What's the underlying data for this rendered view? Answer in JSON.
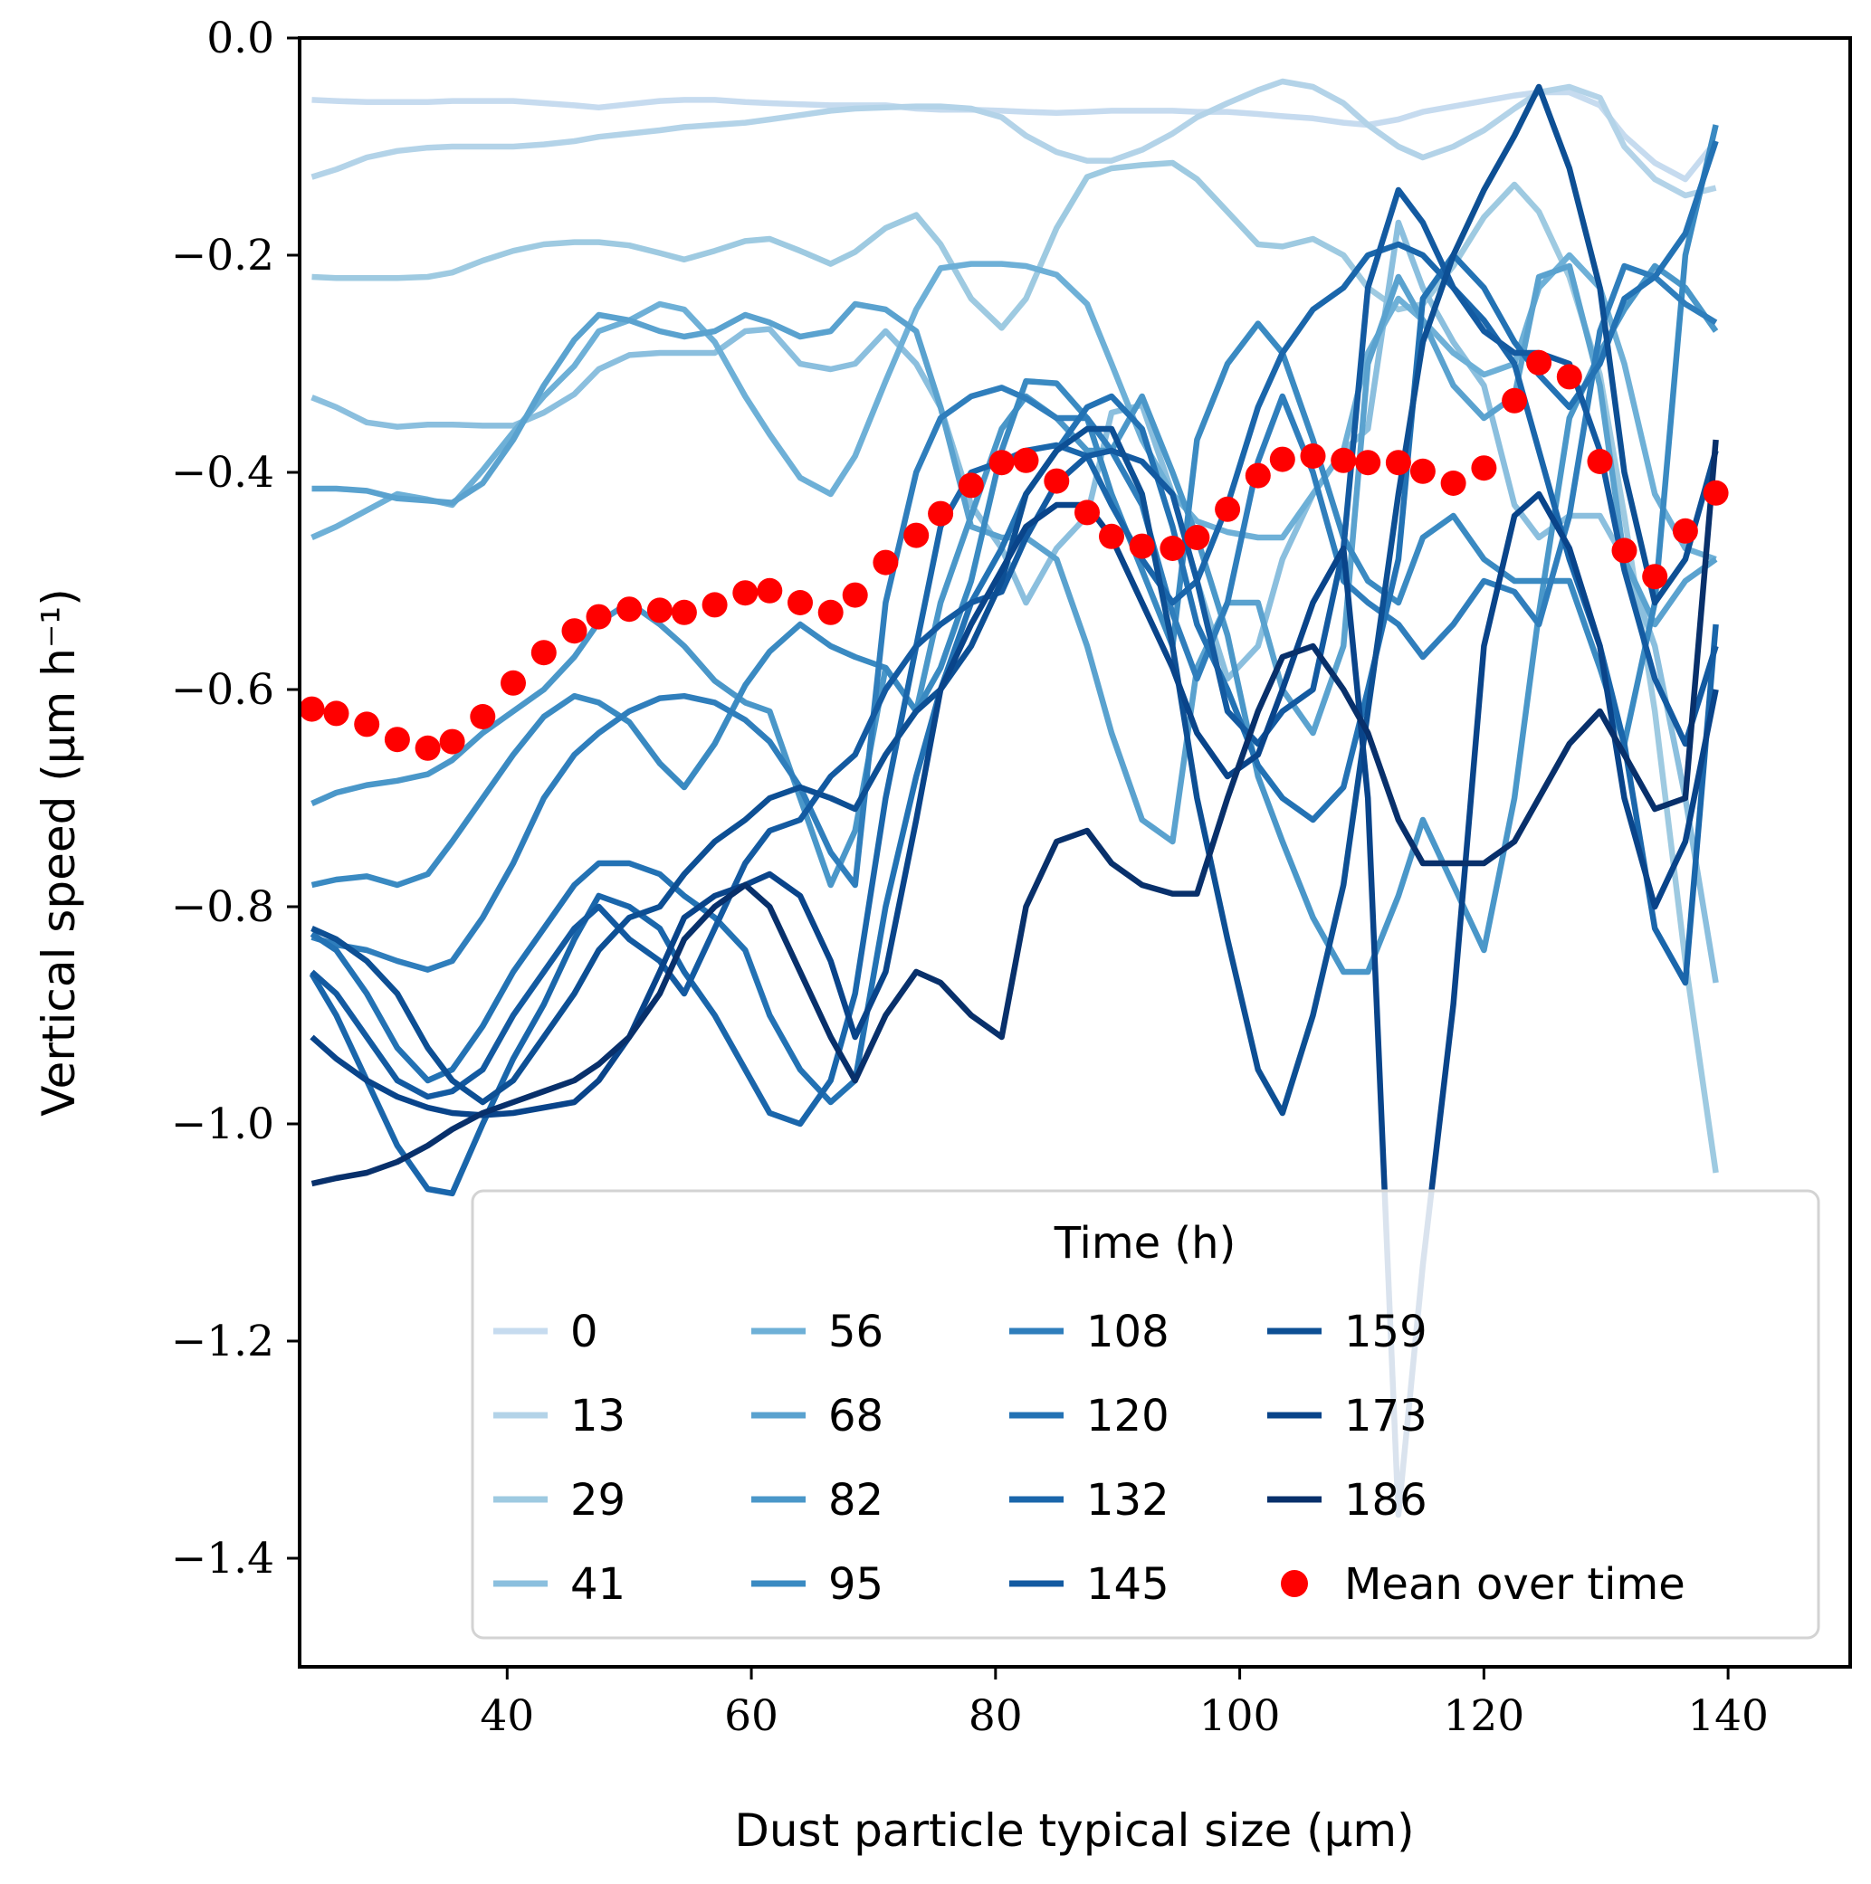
{
  "chart_data": {
    "type": "line",
    "xlabel": "Dust particle typical size (μm)",
    "ylabel": "Vertical speed (μm h⁻¹)",
    "xlim": [
      23,
      150
    ],
    "ylim": [
      -1.5,
      0.0
    ],
    "xticks": [
      40,
      60,
      80,
      100,
      120,
      140
    ],
    "xtick_labels": [
      "40",
      "60",
      "80",
      "100",
      "120",
      "140"
    ],
    "yticks": [
      0.0,
      -0.2,
      -0.4,
      -0.6,
      -0.8,
      -1.0,
      -1.2,
      -1.4
    ],
    "ytick_labels": [
      "0.0",
      "−0.2",
      "−0.4",
      "−0.6",
      "−0.8",
      "−1.0",
      "−1.2",
      "−1.4"
    ],
    "grid": false,
    "legend": {
      "title": "Time (h)",
      "placement": "lower-right",
      "columns": 4
    },
    "x": [
      24,
      26,
      28.5,
      31,
      33.5,
      35.5,
      38,
      40.5,
      43,
      45.5,
      47.5,
      50,
      52.5,
      54.5,
      57,
      59.5,
      61.5,
      64,
      66.5,
      68.5,
      71,
      73.5,
      75.5,
      78,
      80.5,
      82.5,
      85,
      87.5,
      89.5,
      92,
      94.5,
      96.5,
      99,
      101.5,
      103.5,
      106,
      108.5,
      110.5,
      113,
      115,
      117.5,
      120,
      122.5,
      124.5,
      127,
      129.5,
      131.5,
      134,
      136.5,
      139
    ],
    "series": [
      {
        "name": "0",
        "color": "#c6dbef",
        "values": [
          -0.057,
          -0.058,
          -0.059,
          -0.059,
          -0.059,
          -0.058,
          -0.058,
          -0.058,
          -0.06,
          -0.062,
          -0.064,
          -0.061,
          -0.058,
          -0.057,
          -0.057,
          -0.059,
          -0.06,
          -0.061,
          -0.062,
          -0.062,
          -0.062,
          -0.065,
          -0.066,
          -0.066,
          -0.067,
          -0.068,
          -0.069,
          -0.068,
          -0.067,
          -0.067,
          -0.067,
          -0.068,
          -0.068,
          -0.07,
          -0.072,
          -0.074,
          -0.078,
          -0.08,
          -0.075,
          -0.068,
          -0.063,
          -0.058,
          -0.053,
          -0.05,
          -0.05,
          -0.062,
          -0.09,
          -0.115,
          -0.13,
          -0.095
        ]
      },
      {
        "name": "13",
        "color": "#b3d3e8",
        "values": [
          -0.128,
          -0.121,
          -0.11,
          -0.104,
          -0.101,
          -0.1,
          -0.1,
          -0.1,
          -0.098,
          -0.095,
          -0.091,
          -0.088,
          -0.085,
          -0.082,
          -0.08,
          -0.078,
          -0.075,
          -0.071,
          -0.067,
          -0.065,
          -0.064,
          -0.063,
          -0.063,
          -0.065,
          -0.073,
          -0.09,
          -0.105,
          -0.113,
          -0.113,
          -0.103,
          -0.088,
          -0.073,
          -0.06,
          -0.048,
          -0.04,
          -0.045,
          -0.06,
          -0.08,
          -0.1,
          -0.11,
          -0.1,
          -0.085,
          -0.065,
          -0.05,
          -0.045,
          -0.055,
          -0.1,
          -0.13,
          -0.145,
          -0.138
        ]
      },
      {
        "name": "29",
        "color": "#9ecae1",
        "values": [
          -0.22,
          -0.221,
          -0.221,
          -0.221,
          -0.22,
          -0.216,
          -0.205,
          -0.196,
          -0.19,
          -0.188,
          -0.188,
          -0.191,
          -0.198,
          -0.204,
          -0.196,
          -0.187,
          -0.185,
          -0.196,
          -0.208,
          -0.197,
          -0.175,
          -0.163,
          -0.19,
          -0.24,
          -0.267,
          -0.24,
          -0.175,
          -0.128,
          -0.12,
          -0.117,
          -0.115,
          -0.13,
          -0.16,
          -0.19,
          -0.192,
          -0.185,
          -0.2,
          -0.23,
          -0.25,
          -0.245,
          -0.21,
          -0.165,
          -0.135,
          -0.16,
          -0.22,
          -0.31,
          -0.44,
          -0.62,
          -0.85,
          -1.045
        ]
      },
      {
        "name": "41",
        "color": "#8bbfde",
        "values": [
          -0.331,
          -0.34,
          -0.354,
          -0.358,
          -0.356,
          -0.356,
          -0.357,
          -0.357,
          -0.345,
          -0.328,
          -0.305,
          -0.292,
          -0.29,
          -0.29,
          -0.29,
          -0.27,
          -0.268,
          -0.3,
          -0.305,
          -0.3,
          -0.27,
          -0.3,
          -0.34,
          -0.43,
          -0.47,
          -0.52,
          -0.47,
          -0.44,
          -0.345,
          -0.338,
          -0.42,
          -0.5,
          -0.59,
          -0.56,
          -0.48,
          -0.42,
          -0.38,
          -0.36,
          -0.17,
          -0.23,
          -0.28,
          -0.32,
          -0.43,
          -0.46,
          -0.44,
          -0.44,
          -0.48,
          -0.56,
          -0.7,
          -0.87
        ]
      },
      {
        "name": "56",
        "color": "#6eb0d7",
        "values": [
          -0.46,
          -0.45,
          -0.435,
          -0.42,
          -0.425,
          -0.43,
          -0.398,
          -0.363,
          -0.33,
          -0.302,
          -0.27,
          -0.26,
          -0.245,
          -0.25,
          -0.28,
          -0.33,
          -0.365,
          -0.405,
          -0.42,
          -0.385,
          -0.316,
          -0.25,
          -0.212,
          -0.208,
          -0.208,
          -0.21,
          -0.218,
          -0.245,
          -0.3,
          -0.37,
          -0.42,
          -0.445,
          -0.455,
          -0.46,
          -0.46,
          -0.42,
          -0.38,
          -0.29,
          -0.24,
          -0.26,
          -0.29,
          -0.31,
          -0.3,
          -0.23,
          -0.2,
          -0.23,
          -0.3,
          -0.42,
          -0.47,
          -0.48
        ]
      },
      {
        "name": "68",
        "color": "#5aa2cf",
        "values": [
          -0.415,
          -0.415,
          -0.417,
          -0.424,
          -0.426,
          -0.428,
          -0.41,
          -0.37,
          -0.32,
          -0.278,
          -0.255,
          -0.26,
          -0.27,
          -0.275,
          -0.27,
          -0.255,
          -0.262,
          -0.275,
          -0.27,
          -0.245,
          -0.25,
          -0.27,
          -0.34,
          -0.45,
          -0.46,
          -0.46,
          -0.48,
          -0.56,
          -0.64,
          -0.72,
          -0.74,
          -0.58,
          -0.52,
          -0.52,
          -0.6,
          -0.64,
          -0.56,
          -0.3,
          -0.22,
          -0.26,
          -0.32,
          -0.35,
          -0.33,
          -0.22,
          -0.21,
          -0.32,
          -0.48,
          -0.54,
          -0.5,
          -0.48
        ]
      },
      {
        "name": "82",
        "color": "#4a97c9",
        "values": [
          -0.705,
          -0.695,
          -0.688,
          -0.684,
          -0.678,
          -0.665,
          -0.64,
          -0.62,
          -0.6,
          -0.57,
          -0.538,
          -0.52,
          -0.54,
          -0.56,
          -0.592,
          -0.612,
          -0.62,
          -0.7,
          -0.78,
          -0.73,
          -0.58,
          -0.62,
          -0.52,
          -0.44,
          -0.36,
          -0.33,
          -0.35,
          -0.38,
          -0.38,
          -0.33,
          -0.4,
          -0.46,
          -0.55,
          -0.68,
          -0.74,
          -0.81,
          -0.86,
          -0.86,
          -0.79,
          -0.72,
          -0.78,
          -0.84,
          -0.7,
          -0.53,
          -0.35,
          -0.29,
          -0.25,
          -0.21,
          -0.23,
          -0.27
        ]
      },
      {
        "name": "95",
        "color": "#3a8ac2",
        "values": [
          -0.78,
          -0.775,
          -0.772,
          -0.78,
          -0.77,
          -0.74,
          -0.7,
          -0.66,
          -0.625,
          -0.606,
          -0.612,
          -0.63,
          -0.668,
          -0.69,
          -0.65,
          -0.596,
          -0.565,
          -0.54,
          -0.56,
          -0.57,
          -0.58,
          -0.62,
          -0.58,
          -0.5,
          -0.38,
          -0.316,
          -0.318,
          -0.35,
          -0.42,
          -0.49,
          -0.56,
          -0.37,
          -0.3,
          -0.263,
          -0.29,
          -0.37,
          -0.46,
          -0.5,
          -0.52,
          -0.46,
          -0.44,
          -0.48,
          -0.5,
          -0.5,
          -0.5,
          -0.58,
          -0.65,
          -0.52,
          -0.2,
          -0.08
        ]
      },
      {
        "name": "108",
        "color": "#2f7ebc",
        "values": [
          -0.828,
          -0.835,
          -0.84,
          -0.85,
          -0.858,
          -0.85,
          -0.81,
          -0.76,
          -0.7,
          -0.66,
          -0.64,
          -0.62,
          -0.608,
          -0.606,
          -0.612,
          -0.628,
          -0.648,
          -0.69,
          -0.75,
          -0.78,
          -0.52,
          -0.4,
          -0.35,
          -0.33,
          -0.322,
          -0.332,
          -0.35,
          -0.35,
          -0.38,
          -0.43,
          -0.53,
          -0.59,
          -0.52,
          -0.39,
          -0.33,
          -0.4,
          -0.5,
          -0.52,
          -0.54,
          -0.57,
          -0.54,
          -0.5,
          -0.51,
          -0.54,
          -0.44,
          -0.27,
          -0.21,
          -0.22,
          -0.245,
          -0.262
        ]
      },
      {
        "name": "120",
        "color": "#2372b4",
        "values": [
          -0.825,
          -0.84,
          -0.88,
          -0.93,
          -0.96,
          -0.95,
          -0.91,
          -0.86,
          -0.82,
          -0.78,
          -0.76,
          -0.76,
          -0.77,
          -0.79,
          -0.81,
          -0.84,
          -0.9,
          -0.95,
          -0.98,
          -0.96,
          -0.8,
          -0.68,
          -0.6,
          -0.52,
          -0.47,
          -0.42,
          -0.38,
          -0.34,
          -0.33,
          -0.36,
          -0.45,
          -0.54,
          -0.6,
          -0.67,
          -0.7,
          -0.72,
          -0.69,
          -0.6,
          -0.48,
          -0.24,
          -0.2,
          -0.23,
          -0.28,
          -0.31,
          -0.34,
          -0.3,
          -0.24,
          -0.22,
          -0.18,
          -0.095
        ]
      },
      {
        "name": "132",
        "color": "#1a66ab",
        "values": [
          -0.862,
          -0.9,
          -0.96,
          -1.02,
          -1.06,
          -1.064,
          -1.0,
          -0.94,
          -0.89,
          -0.83,
          -0.79,
          -0.8,
          -0.82,
          -0.86,
          -0.9,
          -0.95,
          -0.99,
          -1.0,
          -0.96,
          -0.88,
          -0.7,
          -0.56,
          -0.45,
          -0.4,
          -0.39,
          -0.38,
          -0.375,
          -0.385,
          -0.43,
          -0.48,
          -0.52,
          -0.5,
          -0.43,
          -0.34,
          -0.29,
          -0.25,
          -0.23,
          -0.2,
          -0.19,
          -0.2,
          -0.23,
          -0.26,
          -0.3,
          -0.38,
          -0.48,
          -0.56,
          -0.65,
          -0.82,
          -0.87,
          -0.54
        ]
      },
      {
        "name": "145",
        "color": "#135aa1",
        "values": [
          -0.86,
          -0.88,
          -0.92,
          -0.96,
          -0.975,
          -0.97,
          -0.95,
          -0.9,
          -0.86,
          -0.82,
          -0.8,
          -0.83,
          -0.85,
          -0.88,
          -0.82,
          -0.76,
          -0.73,
          -0.72,
          -0.68,
          -0.66,
          -0.6,
          -0.56,
          -0.54,
          -0.52,
          -0.51,
          -0.46,
          -0.41,
          -0.385,
          -0.38,
          -0.39,
          -0.42,
          -0.5,
          -0.62,
          -0.65,
          -0.62,
          -0.6,
          -0.47,
          -0.23,
          -0.14,
          -0.17,
          -0.23,
          -0.27,
          -0.29,
          -0.29,
          -0.3,
          -0.38,
          -0.49,
          -0.59,
          -0.65,
          -0.56
        ]
      },
      {
        "name": "159",
        "color": "#0d4f94",
        "values": [
          -0.82,
          -0.83,
          -0.85,
          -0.88,
          -0.93,
          -0.96,
          -0.98,
          -0.96,
          -0.92,
          -0.88,
          -0.84,
          -0.81,
          -0.8,
          -0.77,
          -0.74,
          -0.72,
          -0.7,
          -0.69,
          -0.7,
          -0.71,
          -0.66,
          -0.62,
          -0.6,
          -0.56,
          -0.5,
          -0.42,
          -0.38,
          -0.36,
          -0.36,
          -0.42,
          -0.56,
          -0.7,
          -0.83,
          -0.95,
          -0.99,
          -0.9,
          -0.78,
          -0.62,
          -0.42,
          -0.28,
          -0.2,
          -0.14,
          -0.09,
          -0.045,
          -0.12,
          -0.23,
          -0.4,
          -0.52,
          -0.48,
          -0.38
        ]
      },
      {
        "name": "173",
        "color": "#09448a",
        "values": [
          -0.92,
          -0.94,
          -0.96,
          -0.975,
          -0.985,
          -0.99,
          -0.992,
          -0.99,
          -0.985,
          -0.98,
          -0.96,
          -0.92,
          -0.86,
          -0.81,
          -0.79,
          -0.78,
          -0.77,
          -0.79,
          -0.85,
          -0.92,
          -0.86,
          -0.72,
          -0.6,
          -0.54,
          -0.49,
          -0.45,
          -0.43,
          -0.43,
          -0.46,
          -0.52,
          -0.58,
          -0.64,
          -0.68,
          -0.66,
          -0.6,
          -0.52,
          -0.47,
          -0.7,
          -1.36,
          -1.13,
          -0.89,
          -0.56,
          -0.44,
          -0.42,
          -0.47,
          -0.56,
          -0.7,
          -0.8,
          -0.74,
          -0.6
        ]
      },
      {
        "name": "186",
        "color": "#08306b",
        "values": [
          -1.055,
          -1.05,
          -1.045,
          -1.035,
          -1.02,
          -1.005,
          -0.99,
          -0.98,
          -0.97,
          -0.96,
          -0.945,
          -0.92,
          -0.88,
          -0.83,
          -0.8,
          -0.78,
          -0.8,
          -0.86,
          -0.92,
          -0.96,
          -0.9,
          -0.86,
          -0.87,
          -0.9,
          -0.92,
          -0.8,
          -0.74,
          -0.73,
          -0.76,
          -0.78,
          -0.788,
          -0.788,
          -0.7,
          -0.62,
          -0.57,
          -0.56,
          -0.6,
          -0.64,
          -0.72,
          -0.76,
          -0.76,
          -0.76,
          -0.74,
          -0.7,
          -0.65,
          -0.62,
          -0.66,
          -0.71,
          -0.7,
          -0.37
        ]
      }
    ],
    "mean": {
      "name": "Mean over time",
      "color": "#ff0000",
      "values": [
        -0.618,
        -0.622,
        -0.632,
        -0.646,
        -0.654,
        -0.648,
        -0.625,
        -0.594,
        -0.566,
        -0.546,
        -0.533,
        -0.526,
        -0.527,
        -0.529,
        -0.522,
        -0.511,
        -0.509,
        -0.52,
        -0.529,
        -0.513,
        -0.483,
        -0.458,
        -0.438,
        -0.412,
        -0.391,
        -0.389,
        -0.408,
        -0.437,
        -0.459,
        -0.468,
        -0.47,
        -0.46,
        -0.434,
        -0.403,
        -0.388,
        -0.385,
        -0.389,
        -0.391,
        -0.391,
        -0.399,
        -0.41,
        -0.396,
        -0.334,
        -0.299,
        -0.312,
        -0.39,
        -0.472,
        -0.496,
        -0.454,
        -0.419
      ]
    }
  }
}
